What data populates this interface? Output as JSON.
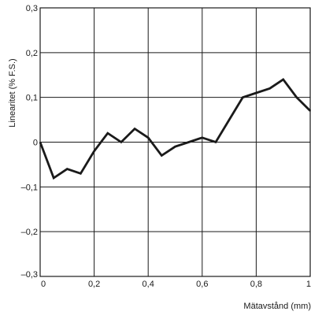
{
  "chart_data": {
    "type": "line",
    "title": "",
    "xlabel": "Mätavstånd (mm)",
    "ylabel": "Linearitet (% F.S.)",
    "xlim": [
      0,
      1
    ],
    "ylim": [
      -0.3,
      0.3
    ],
    "x_ticks": [
      0,
      0.2,
      0.4,
      0.6,
      0.8,
      1
    ],
    "x_tick_labels": [
      "0",
      "0,2",
      "0,4",
      "0,6",
      "0,8",
      "1"
    ],
    "y_ticks": [
      0.3,
      0.2,
      0.1,
      0,
      -0.1,
      -0.2,
      -0.3
    ],
    "y_tick_labels": [
      "0,3",
      "0,2",
      "0,1",
      "0",
      "–0,1",
      "–0,2",
      "–0,3"
    ],
    "grid": true,
    "line_color": "#1a1a1a",
    "series": [
      {
        "x": [
          0,
          0.05,
          0.1,
          0.15,
          0.2,
          0.25,
          0.3,
          0.35,
          0.4,
          0.45,
          0.5,
          0.55,
          0.6,
          0.65,
          0.7,
          0.75,
          0.8,
          0.85,
          0.9,
          0.95,
          1.0
        ],
        "y": [
          0,
          -0.08,
          -0.06,
          -0.07,
          -0.02,
          0.02,
          0,
          0.03,
          0.01,
          -0.03,
          -0.01,
          0,
          0.01,
          0,
          0.05,
          0.1,
          0.11,
          0.12,
          0.14,
          0.1,
          0.07
        ]
      }
    ]
  }
}
